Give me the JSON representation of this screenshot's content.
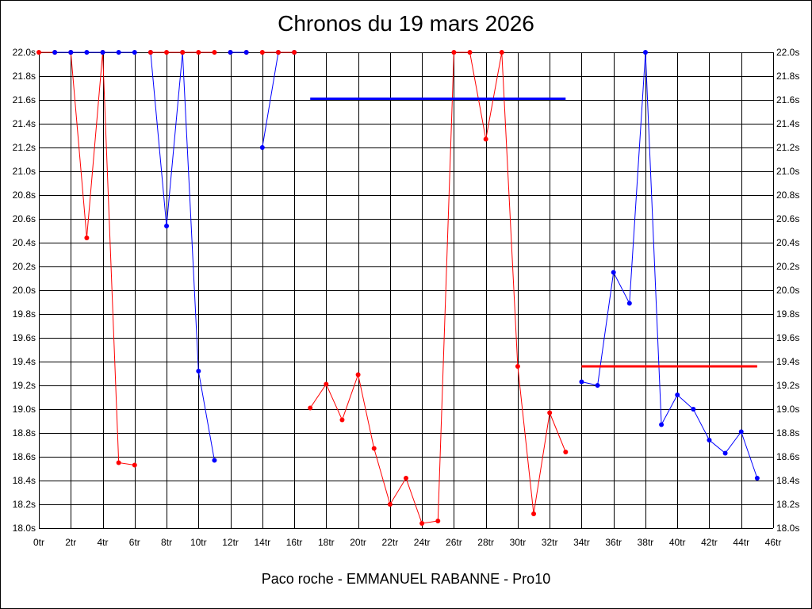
{
  "chart_data": {
    "type": "line",
    "title": "Chronos du 19 mars 2026",
    "xlabel": "Paco roche - EMMANUEL RABANNE - Pro10",
    "ylabel": "",
    "xlim": [
      0,
      46
    ],
    "ylim": [
      18.0,
      22.0
    ],
    "x_tick_step": 2,
    "y_tick_step": 0.2,
    "x_tick_suffix": "tr",
    "y_tick_suffix": "s",
    "grid": true,
    "legend": "none",
    "series": [
      {
        "color": "#ff0000",
        "points": [
          [
            0,
            22.0
          ],
          [
            1,
            22.0
          ]
        ]
      },
      {
        "color": "#0000ff",
        "points": [
          [
            1,
            22.0
          ],
          [
            2,
            22.0
          ]
        ]
      },
      {
        "color": "#ff0000",
        "points": [
          [
            2,
            22.0
          ],
          [
            3,
            20.44
          ],
          [
            4,
            22.0
          ],
          [
            5,
            18.55
          ],
          [
            6,
            18.53
          ]
        ]
      },
      {
        "color": "#0000ff",
        "points": [
          [
            2,
            22.0
          ],
          [
            3,
            22.0
          ],
          [
            4,
            22.0
          ],
          [
            5,
            22.0
          ],
          [
            6,
            22.0
          ]
        ]
      },
      {
        "color": "#0000ff",
        "points": [
          [
            7,
            22.0
          ],
          [
            8,
            20.54
          ],
          [
            9,
            22.0
          ],
          [
            10,
            19.32
          ],
          [
            11,
            18.57
          ]
        ]
      },
      {
        "color": "#ff0000",
        "points": [
          [
            7,
            22.0
          ],
          [
            8,
            22.0
          ],
          [
            9,
            22.0
          ],
          [
            10,
            22.0
          ],
          [
            11,
            22.0
          ]
        ]
      },
      {
        "color": "#ff0000",
        "points": [
          [
            12,
            22.0
          ],
          [
            13,
            22.0
          ]
        ]
      },
      {
        "color": "#0000ff",
        "points": [
          [
            12,
            22.0
          ],
          [
            13,
            22.0
          ]
        ]
      },
      {
        "color": "#0000ff",
        "points": [
          [
            14,
            21.2
          ],
          [
            15,
            22.0
          ],
          [
            16,
            22.0
          ]
        ]
      },
      {
        "color": "#ff0000",
        "points": [
          [
            14,
            22.0
          ],
          [
            15,
            22.0
          ],
          [
            16,
            22.0
          ]
        ]
      },
      {
        "color": "#ff0000",
        "points": [
          [
            17,
            19.01
          ],
          [
            18,
            19.21
          ],
          [
            19,
            18.91
          ],
          [
            20,
            19.29
          ],
          [
            21,
            18.67
          ],
          [
            22,
            18.2
          ],
          [
            23,
            18.42
          ],
          [
            24,
            18.04
          ],
          [
            25,
            18.06
          ],
          [
            26,
            22.0
          ],
          [
            27,
            22.0
          ],
          [
            28,
            21.27
          ],
          [
            29,
            22.0
          ],
          [
            30,
            19.36
          ],
          [
            31,
            18.12
          ],
          [
            32,
            18.97
          ],
          [
            33,
            18.64
          ]
        ]
      },
      {
        "color": "#0000ff",
        "points": [
          [
            34,
            19.23
          ],
          [
            35,
            19.2
          ],
          [
            36,
            20.15
          ],
          [
            37,
            19.89
          ],
          [
            38,
            22.0
          ],
          [
            39,
            18.87
          ],
          [
            40,
            19.12
          ],
          [
            41,
            19.0
          ],
          [
            42,
            18.74
          ],
          [
            43,
            18.63
          ],
          [
            44,
            18.81
          ],
          [
            45,
            18.42
          ]
        ]
      }
    ],
    "reference_lines": [
      {
        "color": "#0000ff",
        "x": [
          17,
          33
        ],
        "y": 21.61
      },
      {
        "color": "#ff0000",
        "x": [
          34,
          45
        ],
        "y": 19.36
      }
    ]
  }
}
